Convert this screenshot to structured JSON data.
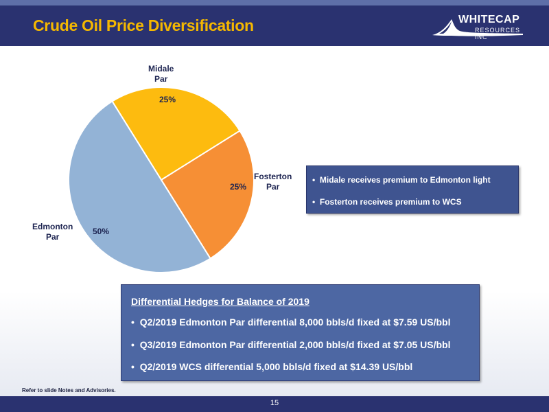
{
  "header": {
    "title": "Crude Oil Price Diversification"
  },
  "logo": {
    "name": "WHITECAP",
    "sub": "RESOURCES INC"
  },
  "chart_data": {
    "type": "pie",
    "title": "",
    "slices": [
      {
        "label": "Midale Par",
        "label_lines": [
          "Midale",
          "Par"
        ],
        "value": 25,
        "pct_label": "25%",
        "color": "#fdbb0f"
      },
      {
        "label": "Fosterton Par",
        "label_lines": [
          "Fosterton",
          "Par"
        ],
        "value": 25,
        "pct_label": "25%",
        "color": "#f68f35"
      },
      {
        "label": "Edmonton Par",
        "label_lines": [
          "Edmonton",
          "Par"
        ],
        "value": 50,
        "pct_label": "50%",
        "color": "#93b3d6"
      }
    ]
  },
  "notes_box": {
    "bullets": [
      "Midale receives premium to Edmonton light",
      "Fosterton receives premium to WCS"
    ]
  },
  "hedges_box": {
    "heading": "Differential Hedges for Balance of 2019",
    "bullets": [
      "Q2/2019 Edmonton Par differential 8,000 bbls/d fixed at $7.59 US/bbl",
      "Q3/2019 Edmonton Par differential 2,000 bbls/d fixed at $7.05 US/bbl",
      "Q2/2019 WCS differential 5,000 bbls/d fixed at $14.39 US/bbl"
    ]
  },
  "footnote": "Refer to slide Notes and Advisories.",
  "page_number": "15"
}
